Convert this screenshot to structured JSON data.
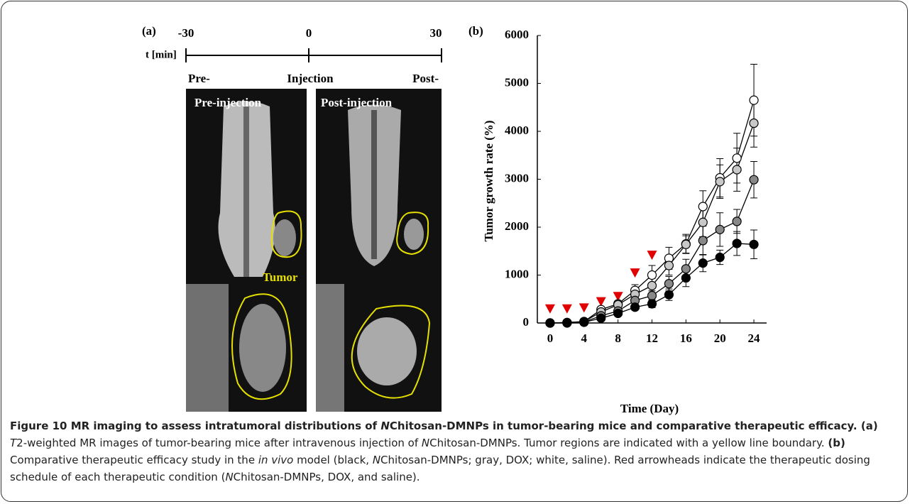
{
  "panel_a": {
    "label": "(a)",
    "timeline": {
      "axis_label": "t [min]",
      "ticks": [
        "-30",
        "0",
        "30"
      ],
      "events": [
        "Pre-",
        "Injection",
        "Post-"
      ]
    },
    "images": [
      {
        "title": "Pre-injection",
        "annotation": "Tumor"
      },
      {
        "title": "Post-injection"
      }
    ]
  },
  "chart_data": {
    "type": "line",
    "label": "(b)",
    "x_label": "Time (Day)",
    "y_label": "Tumor growth rate (%)",
    "x": [
      0,
      2,
      4,
      6,
      8,
      10,
      12,
      14,
      16,
      18,
      20,
      22,
      24
    ],
    "series": [
      {
        "color": "#ffffff",
        "values": [
          0,
          10,
          30,
          280,
          400,
          680,
          1000,
          1350,
          1650,
          2430,
          3030,
          3440,
          4650
        ],
        "errors": [
          20,
          20,
          20,
          50,
          60,
          120,
          200,
          230,
          200,
          330,
          400,
          520,
          750
        ]
      },
      {
        "color": "#c8c8c8",
        "values": [
          0,
          10,
          30,
          230,
          380,
          600,
          780,
          1200,
          1640,
          2100,
          2950,
          3200,
          4170
        ],
        "errors": [
          20,
          20,
          20,
          50,
          60,
          100,
          150,
          200,
          180,
          300,
          350,
          450,
          500
        ]
      },
      {
        "color": "#888888",
        "values": [
          0,
          5,
          20,
          150,
          250,
          470,
          570,
          820,
          1130,
          1720,
          1950,
          2120,
          2990
        ],
        "errors": [
          20,
          20,
          20,
          40,
          50,
          80,
          100,
          150,
          200,
          300,
          350,
          250,
          380
        ]
      },
      {
        "color": "#000000",
        "values": [
          0,
          0,
          15,
          100,
          200,
          330,
          400,
          590,
          940,
          1250,
          1370,
          1660,
          1640
        ],
        "errors": [
          20,
          20,
          20,
          30,
          40,
          60,
          80,
          120,
          180,
          180,
          150,
          250,
          300
        ]
      }
    ],
    "line_color": "#000000",
    "markers": {
      "color": "#e00000",
      "x": [
        0,
        2,
        4,
        6,
        8,
        10,
        12
      ],
      "y": [
        300,
        300,
        320,
        450,
        560,
        1050,
        1420
      ]
    },
    "xlim": [
      -1.5,
      25.5
    ],
    "ylim": [
      0,
      6000
    ],
    "xticks": [
      0,
      4,
      8,
      12,
      16,
      20,
      24
    ],
    "yticks": [
      0,
      1000,
      2000,
      3000,
      4000,
      5000,
      6000
    ]
  },
  "caption": {
    "runs": [
      {
        "text": "Figure 10 MR imaging to assess intratumoral distributions of ",
        "bold": true
      },
      {
        "text": "N",
        "bold": true,
        "italic": true
      },
      {
        "text": "Chitosan-DMNPs in tumor-bearing mice and comparative therapeutic efficacy. ",
        "bold": true
      },
      {
        "text": "(a) ",
        "bold": true
      },
      {
        "text": "T",
        "italic": true
      },
      {
        "text": "2-weighted MR images of tumor-bearing mice after intravenous injection of "
      },
      {
        "text": "N",
        "italic": true
      },
      {
        "text": "Chitosan-DMNPs. Tumor regions are indicated with a yellow line boundary. "
      },
      {
        "text": "(b) ",
        "bold": true
      },
      {
        "text": "Comparative therapeutic efficacy study in the "
      },
      {
        "text": "in vivo",
        "italic": true
      },
      {
        "text": " model (black, "
      },
      {
        "text": "N",
        "italic": true
      },
      {
        "text": "Chitosan-DMNPs; gray, DOX; white, saline). Red arrowheads indicate the therapeutic dosing schedule of each therapeutic condition ("
      },
      {
        "text": "N",
        "italic": true
      },
      {
        "text": "Chitosan-DMNPs, DOX, and saline)."
      }
    ]
  }
}
